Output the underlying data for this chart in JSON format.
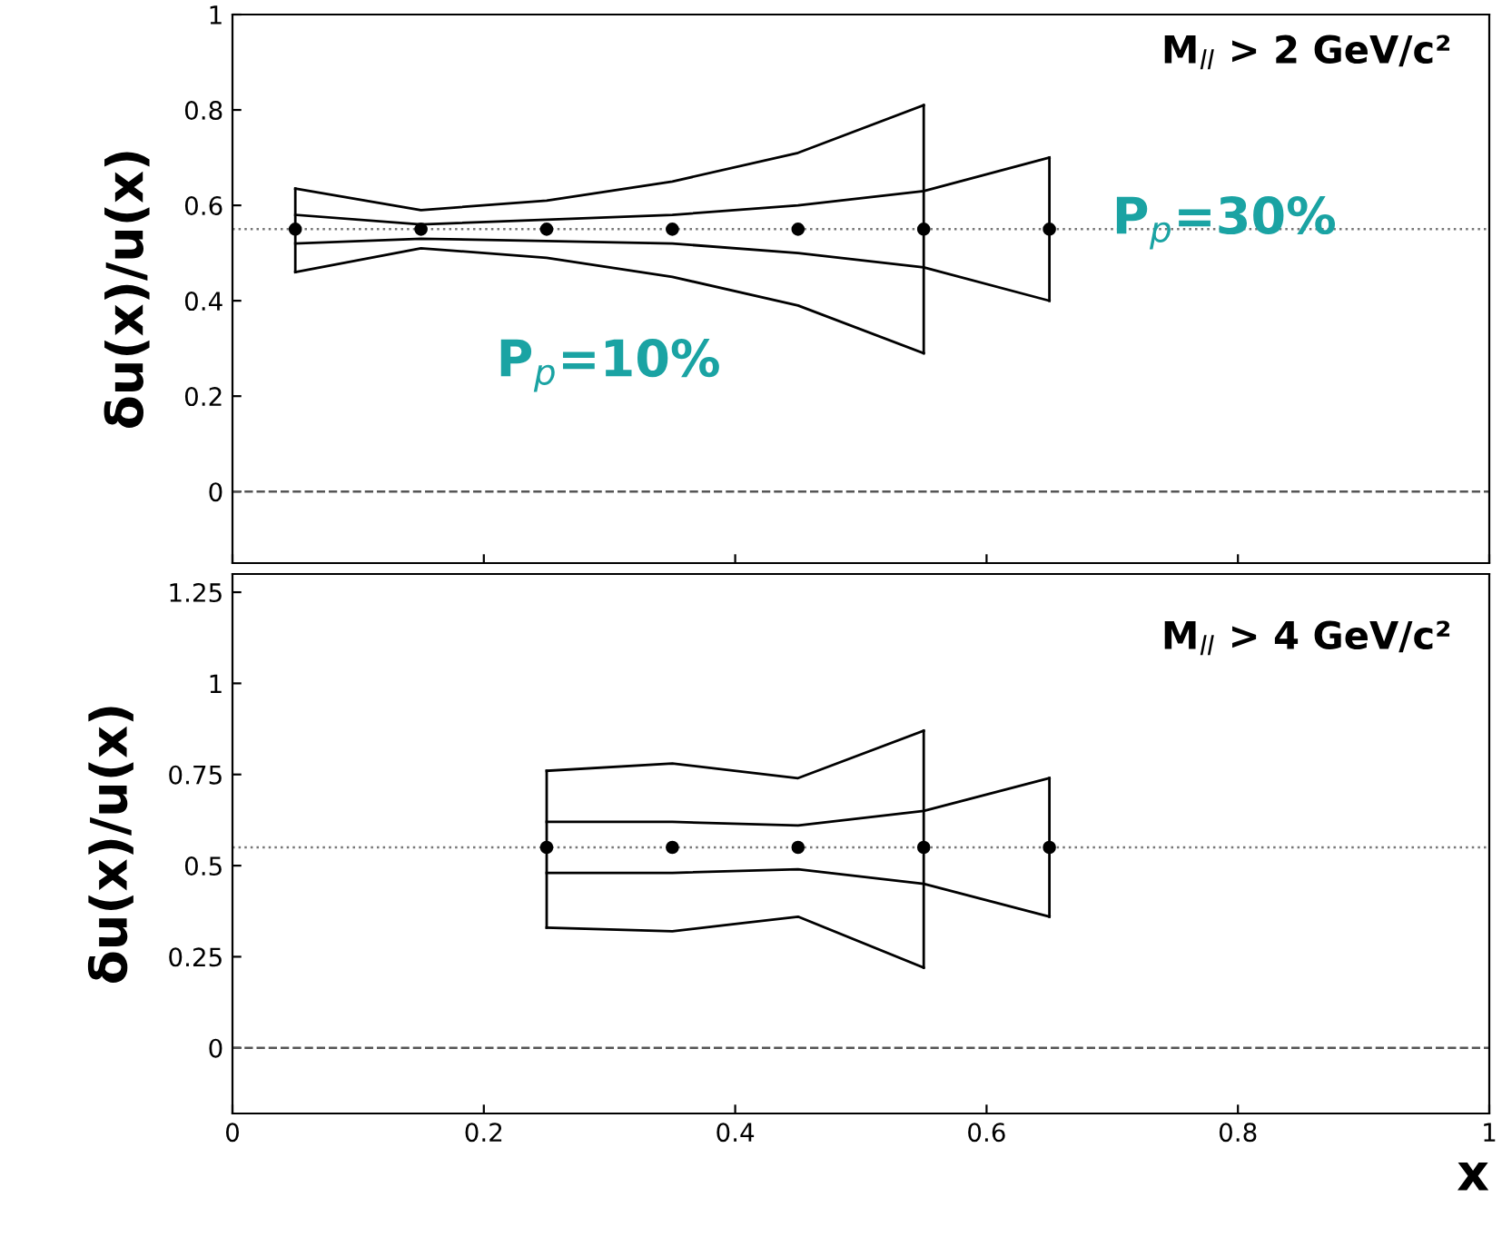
{
  "chart_data": [
    {
      "type": "line",
      "ylabel": "δu(x)/u(x)",
      "annotations": [
        "M$_{ll}$ > 2 GeV/c²",
        "P$_{p}$=10%",
        "P$_{p}$=30%"
      ],
      "xlim": [
        0,
        1
      ],
      "xticks": [
        0,
        0.2,
        0.4,
        0.6,
        0.8,
        1
      ],
      "ylim": [
        -0.15,
        1.0
      ],
      "yticks": [
        0,
        0.2,
        0.4,
        0.6,
        0.8,
        1
      ],
      "tick_labels": "y",
      "grid": false,
      "legend": false,
      "series": [
        {
          "type": "scatter",
          "color": "#000000",
          "marker": "circle",
          "x": [
            0.05,
            0.15,
            0.25,
            0.35,
            0.45,
            0.55,
            0.65
          ],
          "values": [
            0.55,
            0.55,
            0.55,
            0.55,
            0.55,
            0.55,
            0.55
          ],
          "errors": [
            [
              0.46,
              0.635
            ],
            null,
            null,
            null,
            null,
            [
              0.29,
              0.81
            ],
            [
              0.4,
              0.7
            ]
          ]
        },
        {
          "type": "line",
          "color": "#000000",
          "line_style": "solid",
          "x": [
            0.05,
            0.15,
            0.25,
            0.35,
            0.45,
            0.55
          ],
          "values": [
            0.635,
            0.59,
            0.61,
            0.65,
            0.71,
            0.81
          ]
        },
        {
          "type": "line",
          "color": "#000000",
          "line_style": "solid",
          "x": [
            0.05,
            0.15,
            0.25,
            0.35,
            0.45,
            0.55
          ],
          "values": [
            0.46,
            0.51,
            0.49,
            0.45,
            0.39,
            0.29
          ]
        },
        {
          "type": "line",
          "color": "#000000",
          "line_style": "solid",
          "x": [
            0.05,
            0.15,
            0.25,
            0.35,
            0.45,
            0.55,
            0.65
          ],
          "values": [
            0.58,
            0.56,
            0.57,
            0.58,
            0.6,
            0.63,
            0.7
          ]
        },
        {
          "type": "line",
          "color": "#000000",
          "line_style": "solid",
          "x": [
            0.05,
            0.15,
            0.25,
            0.35,
            0.45,
            0.55,
            0.65
          ],
          "values": [
            0.52,
            0.53,
            0.525,
            0.52,
            0.5,
            0.47,
            0.4
          ]
        }
      ],
      "ref_lines": [
        {
          "axis": "y",
          "value": 0.55,
          "line_style": "dotted",
          "color": "#777777"
        },
        {
          "axis": "y",
          "value": 0,
          "line_style": "dashed",
          "color": "#555555"
        }
      ]
    },
    {
      "type": "line",
      "xlabel": "x",
      "ylabel": "δu(x)/u(x)",
      "annotations": [
        "M$_{ll}$ > 4 GeV/c²"
      ],
      "xlim": [
        0,
        1
      ],
      "xticks": [
        0,
        0.2,
        0.4,
        0.6,
        0.8,
        1
      ],
      "ylim": [
        -0.18,
        1.3
      ],
      "yticks": [
        0,
        0.25,
        0.5,
        0.75,
        1,
        1.25
      ],
      "grid": false,
      "legend": false,
      "series": [
        {
          "type": "scatter",
          "color": "#000000",
          "marker": "circle",
          "x": [
            0.25,
            0.35,
            0.45,
            0.55,
            0.65
          ],
          "values": [
            0.55,
            0.55,
            0.55,
            0.55,
            0.55
          ],
          "errors": [
            [
              0.33,
              0.76
            ],
            null,
            null,
            [
              0.22,
              0.87
            ],
            [
              0.36,
              0.74
            ]
          ]
        },
        {
          "type": "line",
          "color": "#000000",
          "line_style": "solid",
          "x": [
            0.25,
            0.35,
            0.45,
            0.55
          ],
          "values": [
            0.76,
            0.78,
            0.74,
            0.87
          ]
        },
        {
          "type": "line",
          "color": "#000000",
          "line_style": "solid",
          "x": [
            0.25,
            0.35,
            0.45,
            0.55
          ],
          "values": [
            0.33,
            0.32,
            0.36,
            0.22
          ]
        },
        {
          "type": "line",
          "color": "#000000",
          "line_style": "solid",
          "x": [
            0.25,
            0.35,
            0.45,
            0.55,
            0.65
          ],
          "values": [
            0.62,
            0.62,
            0.61,
            0.65,
            0.74
          ]
        },
        {
          "type": "line",
          "color": "#000000",
          "line_style": "solid",
          "x": [
            0.25,
            0.35,
            0.45,
            0.55,
            0.65
          ],
          "values": [
            0.48,
            0.48,
            0.49,
            0.45,
            0.36
          ]
        }
      ],
      "ref_lines": [
        {
          "axis": "y",
          "value": 0.55,
          "line_style": "dotted",
          "color": "#777777"
        },
        {
          "axis": "y",
          "value": 0,
          "line_style": "dashed",
          "color": "#555555"
        }
      ]
    }
  ]
}
